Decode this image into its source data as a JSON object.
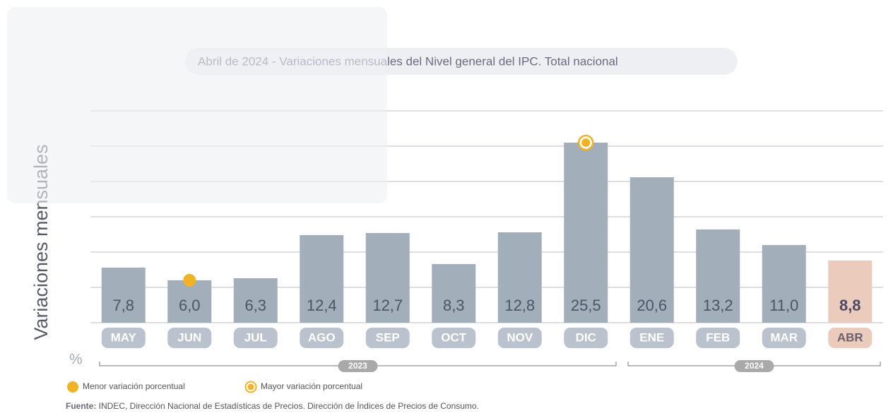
{
  "chart_data": {
    "type": "bar",
    "title": "Abril de 2024 - Variaciones mensuales del Nivel general del IPC. Total nacional",
    "y_label": "Variaciones mensuales",
    "unit_label": "%",
    "categories": [
      "MAY",
      "JUN",
      "JUL",
      "AGO",
      "SEP",
      "OCT",
      "NOV",
      "DIC",
      "ENE",
      "FEB",
      "MAR",
      "ABR"
    ],
    "values": [
      7.8,
      6.0,
      6.3,
      12.4,
      12.7,
      8.3,
      12.8,
      25.5,
      20.6,
      13.2,
      11.0,
      8.8
    ],
    "value_labels": [
      "7,8",
      "6,0",
      "6,3",
      "12,4",
      "12,7",
      "8,3",
      "12,8",
      "25,5",
      "20,6",
      "13,2",
      "11,0",
      "8,8"
    ],
    "colors": [
      "#a3aebb",
      "#a3aebb",
      "#a3aebb",
      "#a3aebb",
      "#a3aebb",
      "#a3aebb",
      "#a3aebb",
      "#a3aebb",
      "#a3aebb",
      "#a3aebb",
      "#a3aebb",
      "#ebcbbb"
    ],
    "ylim": [
      0,
      30
    ],
    "yticks": [
      0,
      5,
      10,
      15,
      20,
      25,
      30
    ],
    "grid": true,
    "groups": [
      {
        "label": "2023",
        "from": "MAY",
        "to": "DIC"
      },
      {
        "label": "2024",
        "from": "ENE",
        "to": "ABR"
      }
    ],
    "markers": [
      {
        "name": "Menor variación porcentual",
        "category": "JUN",
        "style": "dot"
      },
      {
        "name": "Mayor variación porcentual",
        "category": "DIC",
        "style": "ring"
      }
    ],
    "source": {
      "label": "Fuente:",
      "text": " INDEC, Dirección Nacional de Estadísticas de Precios. Dirección de Índices de Precios de Consumo."
    }
  }
}
